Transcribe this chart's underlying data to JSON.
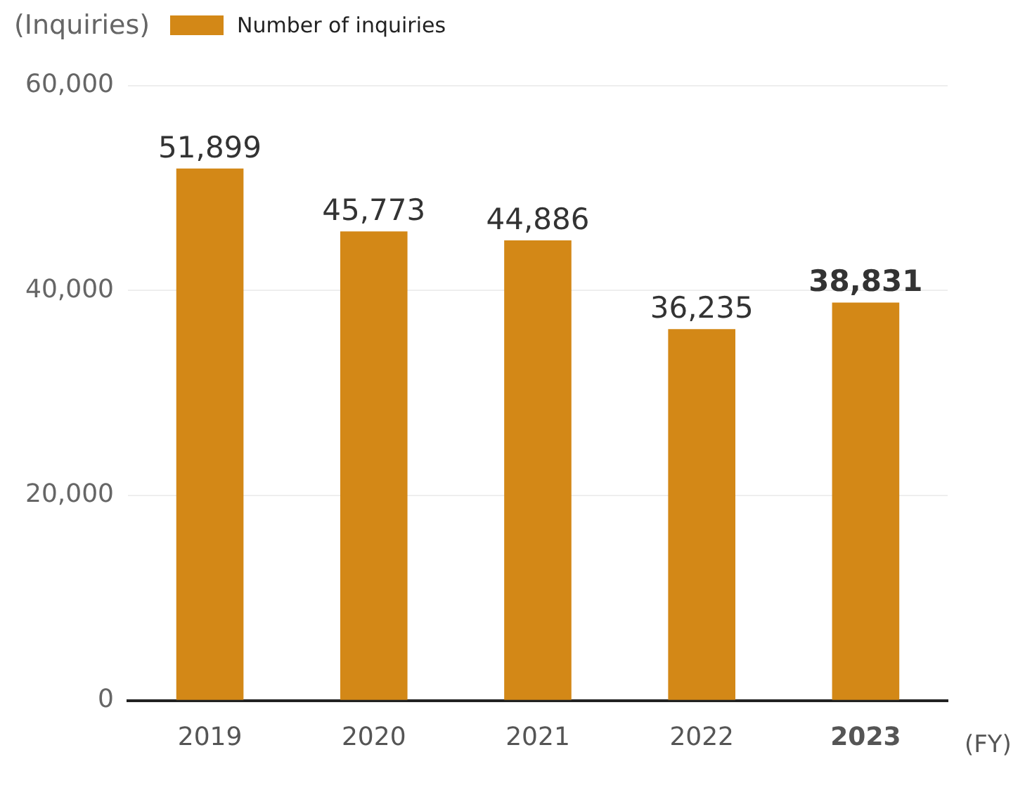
{
  "chart_data": {
    "type": "bar",
    "ylabel": "(Inquiries)",
    "xlabel": "(FY)",
    "categories": [
      "2019",
      "2020",
      "2021",
      "2022",
      "2023"
    ],
    "series": [
      {
        "name": "Number of inquiries",
        "color": "#d38817",
        "values": [
          51899,
          45773,
          44886,
          36235,
          38831
        ],
        "value_labels": [
          "51,899",
          "45,773",
          "44,886",
          "36,235",
          "38,831"
        ]
      }
    ],
    "ylim": [
      0,
      60000
    ],
    "yticks": [
      {
        "value": 0,
        "label": "0"
      },
      {
        "value": 20000,
        "label": "20,000"
      },
      {
        "value": 40000,
        "label": "40,000"
      },
      {
        "value": 60000,
        "label": "60,000"
      }
    ],
    "grid": "y",
    "legend": "top left"
  }
}
